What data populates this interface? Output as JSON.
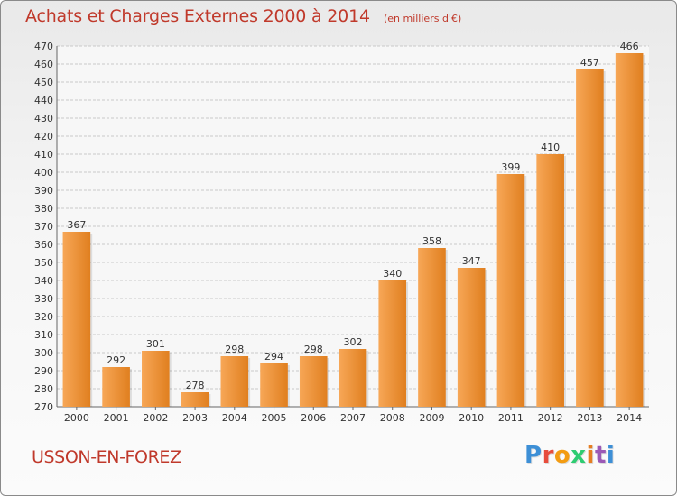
{
  "title": "Achats et Charges Externes 2000 à 2014",
  "unit_note": "(en milliers d'€)",
  "commune": "USSON-EN-FOREZ",
  "logo_text": "Proxiti",
  "colors": {
    "title": "#c0392b",
    "bar_light": "#f7a757",
    "bar_dark": "#e07f1f",
    "grid": "#c8c8c8",
    "logo": [
      "#3d8fd6",
      "#e74c3c",
      "#f39c12",
      "#2ecc71",
      "#e67e22",
      "#9b59b6",
      "#3d8fd6"
    ]
  },
  "chart_data": {
    "type": "bar",
    "categories": [
      "2000",
      "2001",
      "2002",
      "2003",
      "2004",
      "2005",
      "2006",
      "2007",
      "2008",
      "2009",
      "2010",
      "2011",
      "2012",
      "2013",
      "2014"
    ],
    "values": [
      367,
      292,
      301,
      278,
      298,
      294,
      298,
      302,
      340,
      358,
      347,
      399,
      410,
      457,
      466
    ],
    "ylim": [
      270,
      470
    ],
    "yticks": [
      270,
      280,
      290,
      300,
      310,
      320,
      330,
      340,
      350,
      360,
      370,
      380,
      390,
      400,
      410,
      420,
      430,
      440,
      450,
      460,
      470
    ],
    "grid": true,
    "data_labels": true
  }
}
